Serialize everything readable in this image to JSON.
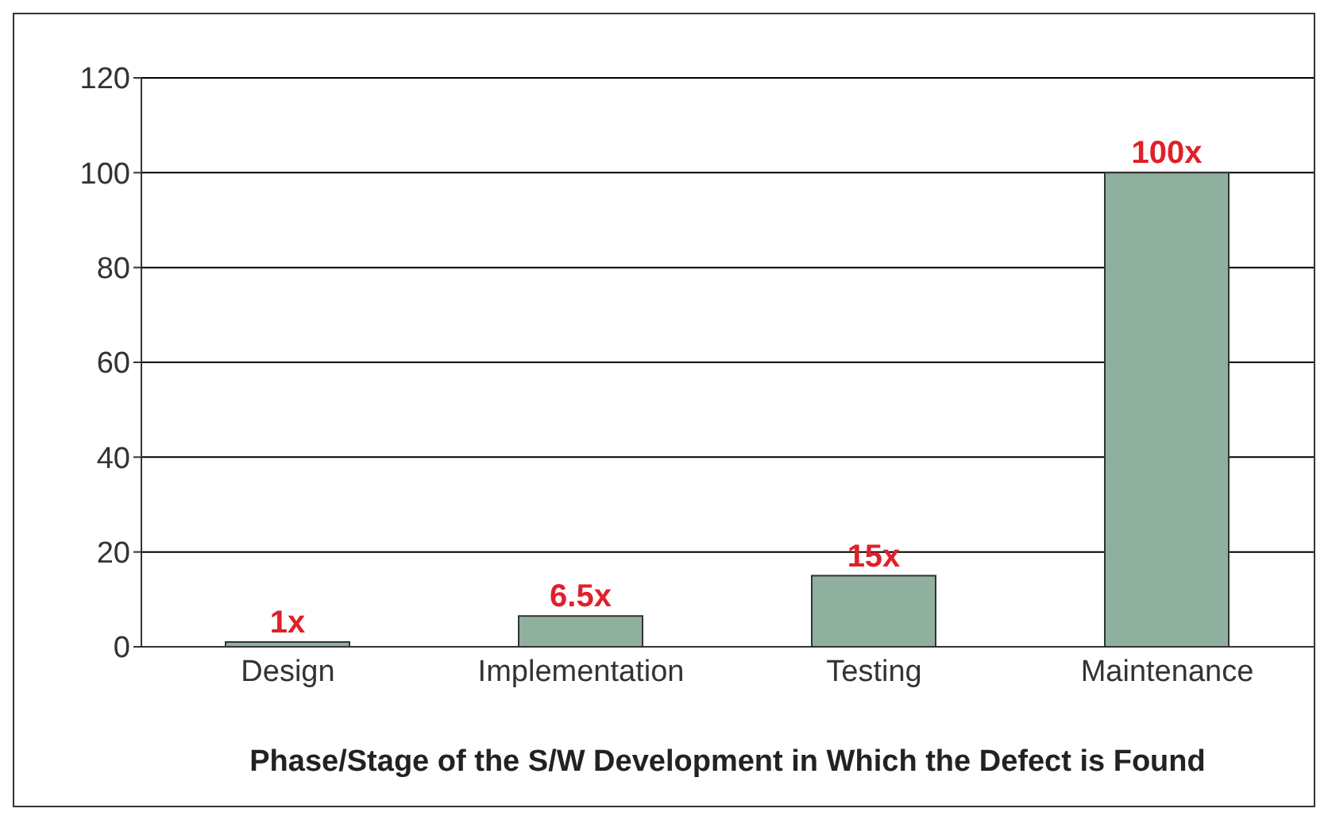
{
  "chart_data": {
    "type": "bar",
    "xlabel": "Phase/Stage of the S/W Development in Which the Defect is Found",
    "categories": [
      "Design",
      "Implementation",
      "Testing",
      "Maintenance"
    ],
    "values": [
      1,
      6.5,
      15,
      100
    ],
    "color": "#8fb09f",
    "value_labels": [
      "1x",
      "6.5x",
      "15x",
      "100x"
    ],
    "ylim": [
      0,
      120
    ],
    "yticks": [
      0,
      20,
      40,
      60,
      80,
      100,
      120
    ],
    "grid": "y"
  }
}
